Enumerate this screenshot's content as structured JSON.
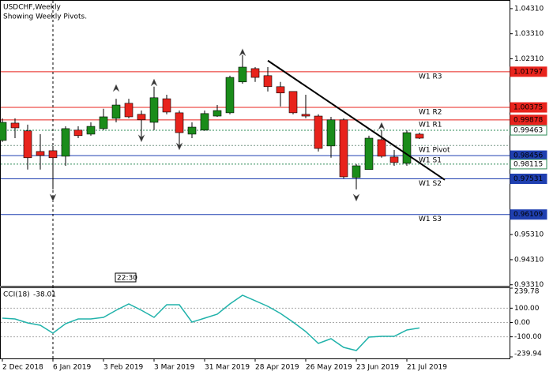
{
  "chart_data": {
    "type": "candlestick",
    "title": "USDCHF,Weekly",
    "subtitle": "Showing Weekly Pivots.",
    "time_label": "22:30",
    "categories": [
      "2 Dec 2018",
      null,
      null,
      null,
      "6 Jan 2019",
      null,
      null,
      null,
      "3 Feb 2019",
      null,
      null,
      null,
      "3 Mar 2019",
      null,
      null,
      null,
      "31 Mar 2019",
      null,
      null,
      null,
      "28 Apr 2019",
      null,
      null,
      null,
      "26 May 2019",
      null,
      null,
      null,
      "23 Jun 2019",
      null,
      null,
      null,
      "21 Jul 2019",
      null
    ],
    "open": [
      0.9906,
      0.9975,
      0.9944,
      0.9862,
      0.9865,
      0.9843,
      0.9947,
      0.9931,
      0.9953,
      0.9994,
      1.0054,
      1.001,
      0.9978,
      1.0072,
      1.0016,
      0.9931,
      0.9947,
      1.0003,
      1.0016,
      1.0139,
      1.0192,
      1.0164,
      1.012,
      1.0101,
      1.001,
      1.0003,
      0.9884,
      0.9988,
      0.9758,
      0.979,
      0.9909,
      0.984,
      0.9815,
      0.9931
    ],
    "high": [
      0.9994,
      0.9994,
      0.9969,
      0.9931,
      0.9884,
      0.9962,
      0.9962,
      0.9978,
      1.0032,
      1.0072,
      1.0072,
      1.0025,
      1.012,
      1.0088,
      1.0025,
      0.9978,
      1.0025,
      1.0047,
      1.0164,
      1.0246,
      1.0198,
      1.0198,
      1.0139,
      1.0101,
      1.0088,
      1.001,
      1.0,
      0.9994,
      0.9812,
      0.9925,
      0.9947,
      0.9868,
      0.9947,
      0.9937
    ],
    "low": [
      0.99,
      0.9915,
      0.979,
      0.979,
      0.9711,
      0.9805,
      0.9915,
      0.9925,
      0.9947,
      0.9978,
      0.9994,
      0.9915,
      0.9947,
      1.001,
      0.9884,
      0.9915,
      0.9944,
      1.0,
      1.001,
      1.0132,
      1.0139,
      1.0101,
      1.0041,
      1.001,
      0.9994,
      0.9862,
      0.9837,
      0.9755,
      0.9711,
      0.979,
      0.9837,
      0.9805,
      0.9805,
      0.9912
    ],
    "close": [
      0.9978,
      0.9956,
      0.9837,
      0.9846,
      0.9837,
      0.9953,
      0.9925,
      0.9962,
      1.0,
      1.0047,
      1.0,
      0.9988,
      1.0076,
      1.0019,
      0.9937,
      0.9959,
      1.0013,
      1.0025,
      1.0157,
      1.0198,
      1.0157,
      1.012,
      1.0095,
      1.0016,
      1.0003,
      0.9874,
      0.9988,
      0.9761,
      0.9805,
      0.9915,
      0.9843,
      0.9818,
      0.9937,
      0.9915
    ],
    "up_color": "#1a8c1a",
    "down_color": "#e8231c",
    "ylim": [
      0.9327,
      1.0459
    ],
    "yticks": [
      {
        "value": 1.0431,
        "label": "1.04310"
      },
      {
        "value": 1.0331,
        "label": "1.03310"
      },
      {
        "value": 1.0231,
        "label": "1.02310"
      },
      {
        "value": 0.9531,
        "label": "0.95310"
      },
      {
        "value": 0.9431,
        "label": "0.94310"
      },
      {
        "value": 0.9331,
        "label": "0.93310"
      }
    ],
    "levels": [
      {
        "name": "W1 R3",
        "value": 1.01797,
        "color": "#e8231c",
        "style": "solid",
        "boxed": true
      },
      {
        "name": "W1 R2",
        "value": 1.00375,
        "color": "#e8231c",
        "style": "solid",
        "boxed": true
      },
      {
        "name": "W1 R1",
        "value": 0.99878,
        "color": "#e8231c",
        "style": "solid",
        "boxed": true
      },
      {
        "value": 0.99463,
        "color": "#2e8b57",
        "style": "dotted",
        "boxed": true
      },
      {
        "name": "W1 Pivot",
        "value": 0.9886,
        "color": "#7a9a8a",
        "style": "dotted",
        "boxed": false
      },
      {
        "name": "W1 S1",
        "value": 0.98456,
        "color": "#1f3fb0",
        "style": "solid",
        "boxed": true
      },
      {
        "value": 0.98115,
        "color": "#2e8b57",
        "style": "dotted",
        "boxed": true
      },
      {
        "name": "W1 S2",
        "value": 0.97531,
        "color": "#1f3fb0",
        "style": "solid",
        "boxed": true
      },
      {
        "name": "W1 S3",
        "value": 0.96109,
        "color": "#1f3fb0",
        "style": "solid",
        "boxed": true
      }
    ],
    "trendline": {
      "x": [
        21,
        35
      ],
      "y": [
        1.0224,
        0.9749
      ],
      "color": "#000000"
    },
    "fractals_up": {
      "x": [
        9,
        12,
        19,
        30
      ],
      "y": [
        1.0129,
        1.0151,
        1.0271,
        0.9978
      ]
    },
    "fractals_down": {
      "x": [
        4,
        11,
        14,
        28
      ],
      "y": [
        0.9664,
        0.99,
        0.9868,
        0.9664
      ]
    },
    "indicator": {
      "name": "CCI(18)",
      "current": -38.01,
      "color": "#20b2aa",
      "values": [
        30.3,
        24.8,
        -2.8,
        -19.4,
        -74.5,
        -8.3,
        24.8,
        24.8,
        35.8,
        85.4,
        129.5,
        85.4,
        35.8,
        124.0,
        124.0,
        2.7,
        30.3,
        57.8,
        129.5,
        190.2,
        151.6,
        113.0,
        63.4,
        2.7,
        -63.5,
        -146.2,
        -113.1,
        -173.8,
        -195.8,
        -102.1,
        -96.6,
        -96.6,
        -52.4,
        -38.01
      ],
      "ylim": [
        -239.94,
        239.78
      ],
      "yticks": [
        239.78,
        {
          "value": 100,
          "label": "100.00"
        },
        {
          "value": 0,
          "label": "0.00"
        },
        {
          "value": -100,
          "label": "-100.00"
        },
        -239.94
      ],
      "grid": true
    }
  }
}
